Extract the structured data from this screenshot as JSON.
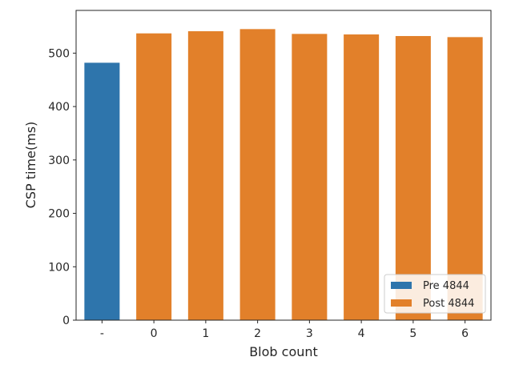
{
  "chart_data": {
    "type": "bar",
    "title": "",
    "xlabel": "Blob count",
    "ylabel": "CSP time(ms)",
    "categories": [
      "-",
      "0",
      "1",
      "2",
      "3",
      "4",
      "5",
      "6"
    ],
    "values": [
      482,
      537,
      541,
      545,
      536,
      535,
      532,
      530
    ],
    "bar_groups": [
      "Pre 4844",
      "Post 4844",
      "Post 4844",
      "Post 4844",
      "Post 4844",
      "Post 4844",
      "Post 4844",
      "Post 4844"
    ],
    "ylim": [
      0,
      580
    ],
    "yticks": [
      0,
      100,
      200,
      300,
      400,
      500
    ],
    "grid": false,
    "legend": {
      "position": "bottom-right",
      "entries": [
        {
          "name": "Pre 4844",
          "color": "#2e75ac"
        },
        {
          "name": "Post 4844",
          "color": "#e2802a"
        }
      ]
    }
  }
}
